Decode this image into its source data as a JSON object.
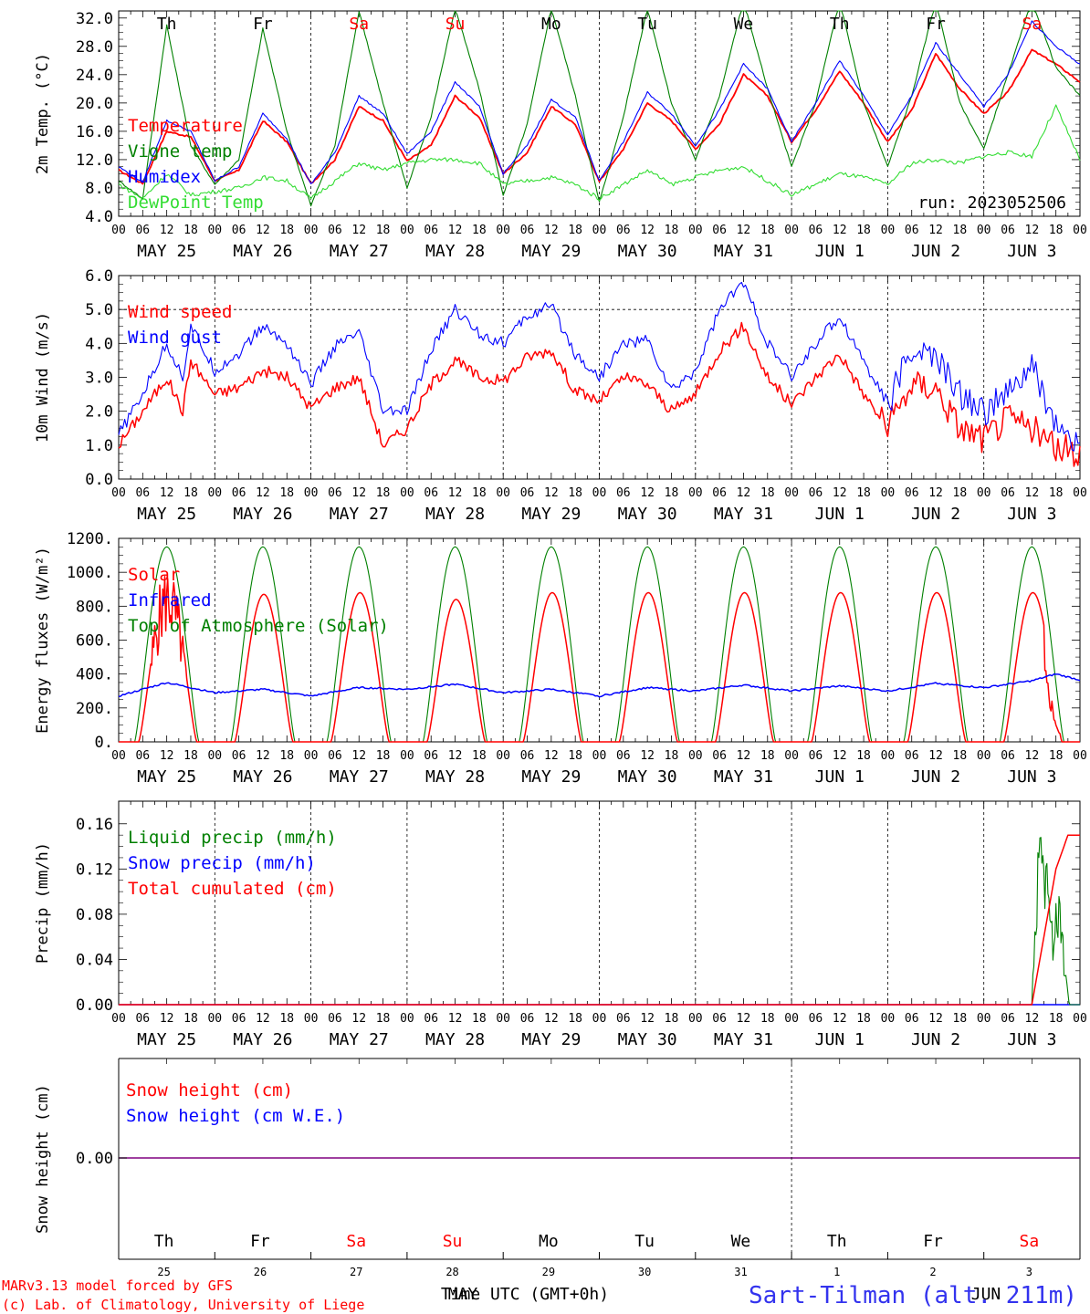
{
  "colors": {
    "red": "#ff0000",
    "green": "#008000",
    "blue": "#0000ff",
    "lightgreen": "#33dd33",
    "purple": "#800080",
    "axis": "#000000"
  },
  "run_label": "run: 2023052506",
  "footer": {
    "credit_line1": "MARv3.13 model forced by GFS",
    "credit_line2": "(c) Lab. of Climatology, University of Liege",
    "xaxis_label": "Time UTC (GMT+0h)",
    "month_label": "MAY",
    "month_label2": "JUN",
    "station": "Sart-Tilman (alt. 211m)"
  },
  "day_names": [
    "Th",
    "Fr",
    "Sa",
    "Su",
    "Mo",
    "Tu",
    "We",
    "Th",
    "Fr",
    "Sa"
  ],
  "weekend_flags": [
    false,
    false,
    true,
    true,
    false,
    false,
    false,
    false,
    false,
    true
  ],
  "date_labels": [
    "MAY 25",
    "MAY 26",
    "MAY 27",
    "MAY 28",
    "MAY 29",
    "MAY 30",
    "MAY 31",
    "JUN  1",
    "JUN  2",
    "JUN  3"
  ],
  "day_numbers": [
    "25",
    "26",
    "27",
    "28",
    "29",
    "30",
    "31",
    "1",
    "2",
    "3"
  ],
  "hour_ticks": [
    "00",
    "06",
    "12",
    "18"
  ],
  "hour_end": "00",
  "chart_data": [
    {
      "type": "line",
      "ylabel": "2m Temp. (°C)",
      "ylim": [
        4,
        33
      ],
      "yticks": [
        "4.0",
        "8.0",
        "12.0",
        "16.0",
        "20.0",
        "24.0",
        "28.0",
        "32.0"
      ],
      "yvals": [
        4,
        8,
        12,
        16,
        20,
        24,
        28,
        32
      ],
      "x_unit": "hours since MAY 25 00 UTC",
      "series": [
        {
          "name": "Temperature",
          "color": "#ff0000",
          "x": [
            0,
            6,
            12,
            18,
            24,
            30,
            36,
            42,
            48,
            54,
            60,
            66,
            72,
            78,
            84,
            90,
            96,
            102,
            108,
            114,
            120,
            126,
            132,
            138,
            144,
            150,
            156,
            162,
            168,
            174,
            180,
            186,
            192,
            198,
            204,
            210,
            216,
            222,
            228,
            234,
            240
          ],
          "values": [
            10.5,
            8.6,
            16.0,
            15.2,
            9.0,
            10.5,
            17.5,
            14.5,
            8.6,
            12.0,
            19.5,
            17.5,
            11.8,
            14.0,
            21.0,
            18.0,
            10.0,
            13.0,
            19.5,
            17.0,
            8.9,
            13.5,
            20.0,
            17.5,
            13.5,
            17.0,
            24.0,
            21.0,
            14.5,
            19.0,
            24.5,
            20.0,
            14.5,
            19.0,
            27.0,
            22.0,
            18.5,
            21.5,
            27.5,
            25.5,
            23.0
          ]
        },
        {
          "name": "Vigne temp",
          "color": "#008000",
          "x": [
            0,
            6,
            12,
            18,
            24,
            30,
            36,
            42,
            48,
            54,
            60,
            66,
            72,
            78,
            84,
            90,
            96,
            102,
            108,
            114,
            120,
            126,
            132,
            138,
            144,
            150,
            156,
            162,
            168,
            174,
            180,
            186,
            192,
            198,
            204,
            210,
            216,
            222,
            228,
            234,
            240
          ],
          "values": [
            9.0,
            6.5,
            31.0,
            14.0,
            8.5,
            12.0,
            30.5,
            16.0,
            5.5,
            14.0,
            33.0,
            20.0,
            8.0,
            18.0,
            33.5,
            22.0,
            7.0,
            17.0,
            33.5,
            21.0,
            6.0,
            18.0,
            33.5,
            20.0,
            12.0,
            21.0,
            34.5,
            22.0,
            11.0,
            20.0,
            34.5,
            20.0,
            11.0,
            21.0,
            34.5,
            20.0,
            13.5,
            24.0,
            34.5,
            25.0,
            21.0
          ]
        },
        {
          "name": "Humidex",
          "color": "#0000ff",
          "x": [
            0,
            6,
            12,
            18,
            24,
            30,
            36,
            42,
            48,
            54,
            60,
            66,
            72,
            78,
            84,
            90,
            96,
            102,
            108,
            114,
            120,
            126,
            132,
            138,
            144,
            150,
            156,
            162,
            168,
            174,
            180,
            186,
            192,
            198,
            204,
            210,
            216,
            222,
            228,
            234,
            240
          ],
          "values": [
            11.0,
            8.8,
            17.5,
            16.0,
            9.0,
            11.0,
            18.5,
            15.0,
            8.5,
            13.0,
            21.0,
            18.5,
            12.8,
            16.0,
            23.0,
            19.5,
            10.0,
            14.0,
            20.5,
            18.0,
            9.0,
            14.5,
            21.5,
            18.5,
            14.0,
            19.0,
            25.5,
            22.0,
            14.5,
            20.0,
            26.0,
            21.0,
            15.5,
            21.0,
            28.5,
            24.0,
            19.5,
            24.0,
            31.5,
            28.0,
            25.5
          ]
        },
        {
          "name": "DewPoint Temp",
          "color": "#33dd33",
          "x": [
            0,
            6,
            12,
            18,
            24,
            30,
            36,
            42,
            48,
            54,
            60,
            66,
            72,
            78,
            84,
            90,
            96,
            102,
            108,
            114,
            120,
            126,
            132,
            138,
            144,
            150,
            156,
            162,
            168,
            174,
            180,
            186,
            192,
            198,
            204,
            210,
            216,
            222,
            228,
            234,
            240
          ],
          "values": [
            8.5,
            6.5,
            10.0,
            7.0,
            7.5,
            8.0,
            9.5,
            9.0,
            6.5,
            9.0,
            11.5,
            10.5,
            11.5,
            12.0,
            12.0,
            11.5,
            8.5,
            9.0,
            9.5,
            8.5,
            6.5,
            8.5,
            10.5,
            8.5,
            9.5,
            10.5,
            11.0,
            9.0,
            7.0,
            8.5,
            10.0,
            9.5,
            8.5,
            11.5,
            12.0,
            11.5,
            12.5,
            13.0,
            12.5,
            19.5,
            12.0
          ]
        }
      ]
    },
    {
      "type": "line",
      "ylabel": "10m Wind (m/s)",
      "ylim": [
        0,
        6
      ],
      "yticks": [
        "0.0",
        "1.0",
        "2.0",
        "3.0",
        "4.0",
        "5.0",
        "6.0"
      ],
      "yvals": [
        0,
        1,
        2,
        3,
        4,
        5,
        6
      ],
      "dashed_y": 5,
      "series": [
        {
          "name": "Wind speed",
          "color": "#ff0000",
          "x": [
            0,
            6,
            12,
            16,
            18,
            24,
            30,
            36,
            42,
            48,
            54,
            60,
            66,
            72,
            78,
            84,
            90,
            96,
            102,
            108,
            114,
            120,
            126,
            132,
            138,
            144,
            150,
            156,
            162,
            168,
            174,
            180,
            186,
            192,
            198,
            204,
            210,
            216,
            222,
            228,
            234,
            240
          ],
          "values": [
            1.0,
            2.0,
            3.0,
            2.0,
            3.5,
            2.5,
            2.7,
            3.2,
            3.0,
            2.1,
            2.7,
            3.0,
            1.0,
            1.5,
            2.8,
            3.5,
            3.0,
            2.9,
            3.6,
            3.8,
            2.6,
            2.3,
            3.0,
            2.8,
            2.0,
            2.5,
            3.8,
            4.5,
            3.0,
            2.2,
            3.0,
            3.7,
            2.5,
            1.5,
            2.8,
            2.7,
            1.5,
            1.2,
            1.8,
            1.5,
            0.9,
            0.8
          ]
        },
        {
          "name": "Wind gust",
          "color": "#0000ff",
          "x": [
            0,
            6,
            12,
            16,
            18,
            24,
            30,
            36,
            42,
            48,
            54,
            60,
            66,
            72,
            78,
            84,
            90,
            96,
            102,
            108,
            114,
            120,
            126,
            132,
            138,
            144,
            150,
            156,
            162,
            168,
            174,
            180,
            186,
            192,
            198,
            204,
            210,
            216,
            222,
            228,
            234,
            240
          ],
          "values": [
            1.3,
            2.5,
            4.0,
            3.0,
            4.5,
            3.2,
            3.7,
            4.5,
            4.0,
            2.8,
            3.9,
            4.3,
            2.0,
            2.0,
            3.8,
            5.0,
            4.3,
            4.0,
            4.8,
            5.1,
            3.7,
            3.0,
            4.0,
            4.1,
            2.6,
            3.2,
            5.0,
            5.8,
            4.0,
            3.0,
            4.0,
            4.8,
            3.5,
            2.2,
            3.8,
            3.6,
            2.5,
            2.0,
            2.5,
            3.3,
            1.6,
            0.8
          ]
        }
      ]
    },
    {
      "type": "line",
      "ylabel": "Energy fluxes (W/m²)",
      "ylim": [
        0,
        1200
      ],
      "yticks": [
        "0.",
        "200.",
        "400.",
        "600.",
        "800.",
        "1000.",
        "1200."
      ],
      "yvals": [
        0,
        200,
        400,
        600,
        800,
        1000,
        1200
      ],
      "series": [
        {
          "name": "Solar",
          "color": "#ff0000",
          "peaks": [
            880,
            870,
            880,
            840,
            880,
            880,
            880,
            880,
            880,
            880
          ]
        },
        {
          "name": "Infrared",
          "color": "#0000ff",
          "x": [
            0,
            12,
            24,
            36,
            48,
            60,
            72,
            84,
            96,
            108,
            120,
            132,
            144,
            156,
            168,
            180,
            192,
            204,
            216,
            228,
            234,
            240
          ],
          "values": [
            270,
            350,
            290,
            310,
            270,
            320,
            310,
            340,
            290,
            310,
            270,
            320,
            300,
            335,
            300,
            330,
            300,
            345,
            320,
            360,
            400,
            365
          ]
        },
        {
          "name": "Top of Atmosphere (Solar)",
          "color": "#008000",
          "peak": 1150
        }
      ]
    },
    {
      "type": "line",
      "ylabel": "Precip (mm/h)",
      "ylim": [
        0,
        0.18
      ],
      "yticks": [
        "0.00",
        "0.04",
        "0.08",
        "0.12",
        "0.16"
      ],
      "yvals": [
        0,
        0.04,
        0.08,
        0.12,
        0.16
      ],
      "series": [
        {
          "name": "Liquid precip (mm/h)",
          "color": "#008000",
          "x": [
            0,
            228,
            229,
            230,
            231,
            232,
            233,
            234,
            235,
            236,
            237,
            238,
            240
          ],
          "values": [
            0,
            0,
            0.06,
            0.17,
            0.1,
            0.12,
            0.05,
            0.09,
            0.07,
            0.03,
            0.01,
            0,
            0
          ]
        },
        {
          "name": "Snow precip (mm/h)",
          "color": "#0000ff",
          "x": [
            0,
            240
          ],
          "values": [
            0,
            0
          ]
        },
        {
          "name": "Total cumulated (cm)",
          "color": "#ff0000",
          "x": [
            0,
            228,
            231,
            234,
            237,
            240
          ],
          "values": [
            0,
            0,
            0.06,
            0.12,
            0.15,
            0.15
          ]
        }
      ]
    },
    {
      "type": "line",
      "ylabel": "Snow height (cm)",
      "yticks": [
        "0.00"
      ],
      "series": [
        {
          "name": "Snow height (cm)",
          "color": "#ff0000",
          "values": [
            0,
            0
          ]
        },
        {
          "name": "Snow height (cm W.E.)",
          "color": "#0000ff",
          "values": [
            0,
            0
          ]
        }
      ]
    }
  ]
}
